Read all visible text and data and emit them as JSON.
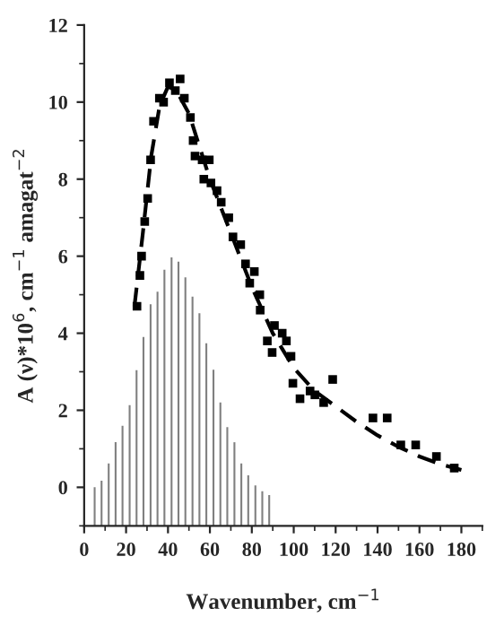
{
  "chart_data": {
    "type": "scatter",
    "xlabel": "Wavenumber, cm$^{−1}$",
    "ylabel": "A (ν)*10$^{6}$, cm$^{−1}$ amagat$^{−2}$",
    "xlim": [
      0,
      190
    ],
    "ylim": [
      -1,
      12
    ],
    "xticks": [
      0,
      20,
      40,
      60,
      80,
      100,
      120,
      140,
      160,
      180
    ],
    "yticks": [
      0,
      2,
      4,
      6,
      8,
      10,
      12
    ],
    "grid": false,
    "legend": false,
    "series": [
      {
        "type": "bar",
        "color": "#808080",
        "x": [
          5,
          8.3,
          11.7,
          15,
          18.3,
          21.7,
          25,
          28.3,
          31.7,
          35,
          38.3,
          41.7,
          45,
          48.3,
          51.7,
          55,
          58.3,
          61.7,
          65,
          68.3,
          71.7,
          75,
          78.3,
          81.7,
          85,
          88.3
        ],
        "base": [
          -1,
          -1,
          -1,
          -1,
          -1,
          -1,
          -1,
          -1,
          -1,
          -1,
          -1,
          -1,
          -1,
          -1,
          -1,
          -1,
          -1,
          -1,
          -1,
          -1,
          -1,
          -1,
          -1,
          -1,
          -1,
          -1
        ],
        "values": [
          1.0,
          1.17,
          1.62,
          2.17,
          2.6,
          3.13,
          4.04,
          4.9,
          5.75,
          6.08,
          6.65,
          6.97,
          6.86,
          6.45,
          5.95,
          5.52,
          4.74,
          4.05,
          3.2,
          2.56,
          2.17,
          1.62,
          1.31,
          1.05,
          0.9,
          0.8
        ]
      },
      {
        "color": "#000000",
        "marker": "square",
        "x": [
          25.2,
          26.6,
          27.4,
          28.9,
          30.3,
          31.7,
          33.1,
          35.9,
          37.9,
          40.7,
          43.5,
          45.8,
          47.8,
          50.7,
          52,
          52.9,
          56.3,
          57.1,
          59.7,
          60.5,
          63.4,
          65.4,
          69,
          71,
          74.7,
          77,
          79,
          81.2,
          83.8,
          84,
          87.4,
          89.7,
          90.8,
          94.5,
          96.5,
          98.7,
          99.6,
          103,
          107.8,
          110.1,
          114.3,
          118.6,
          137.8,
          144.6,
          151.1,
          158.2,
          168.1,
          176.6
        ],
        "values": [
          4.7,
          5.5,
          6.0,
          6.9,
          7.5,
          8.5,
          9.5,
          10.1,
          10.0,
          10.5,
          10.3,
          10.6,
          10.1,
          9.6,
          9.0,
          8.6,
          8.5,
          8.0,
          8.5,
          7.9,
          7.7,
          7.4,
          7.0,
          6.5,
          6.3,
          5.8,
          5.3,
          5.6,
          5.0,
          4.6,
          3.8,
          3.5,
          4.2,
          4.0,
          3.8,
          3.4,
          2.7,
          2.3,
          2.5,
          2.4,
          2.2,
          2.8,
          1.8,
          1.8,
          1.1,
          1.1,
          0.8,
          0.5
        ]
      },
      {
        "type": "line",
        "color": "#000000",
        "line_style": "dashed",
        "x": [
          24,
          28,
          32,
          36,
          40,
          44,
          50,
          60,
          70,
          80,
          90,
          100,
          110,
          120,
          130,
          140,
          150,
          160,
          170,
          180
        ],
        "values": [
          4.7,
          6.6,
          8.6,
          9.9,
          10.4,
          10.3,
          9.7,
          8.0,
          6.6,
          5.2,
          4.0,
          3.1,
          2.5,
          2.1,
          1.7,
          1.35,
          1.05,
          0.8,
          0.6,
          0.45
        ]
      }
    ]
  }
}
